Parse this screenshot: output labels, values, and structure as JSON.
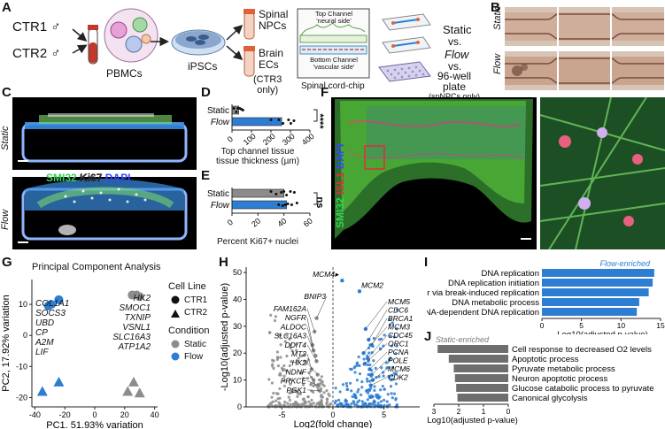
{
  "panels": {
    "A": {
      "letter": "A",
      "ctr1": "CTR1 ♂",
      "ctr2": "CTR2 ♂",
      "pbmcs": "PBMCs",
      "ipscs": "iPSCs",
      "spinal_npcs": [
        "Spinal",
        "NPCs"
      ],
      "brain_ecs": [
        "Brain",
        "ECs"
      ],
      "ctr3_only": [
        "CTR3",
        "only"
      ],
      "top_channel": [
        "Top Channel",
        "'neural side'"
      ],
      "bottom_channel": [
        "Bottom Channel",
        "'vascular side'"
      ],
      "chip_label": "Spinal cord-chip",
      "static": "Static",
      "vs1": "vs.",
      "flow": "Flow",
      "vs2": "vs.",
      "well_plate": [
        "96-well",
        "plate"
      ],
      "spnpcs_only": "(spNPCs only)"
    },
    "B": {
      "letter": "B",
      "static": "Static",
      "flow": "Flow"
    },
    "C": {
      "letter": "C",
      "static": "Static",
      "flow": "Flow",
      "smi32": "SMI32",
      "ki67": "Ki67",
      "dapi": "DAPI"
    },
    "D": {
      "letter": "D",
      "xlabel": [
        "Top channel tissue",
        "tissue thickness (µm)"
      ],
      "significance": "****"
    },
    "E": {
      "letter": "E",
      "xlabel": "Percent Ki67+ nuclei",
      "significance": "ns"
    },
    "F": {
      "letter": "F",
      "smi32": "SMI32",
      "isl1": "ISL1",
      "dapi": "DAPI"
    },
    "G": {
      "letter": "G",
      "title": "Principal Component Analysis",
      "cell_line_title": "Cell Line",
      "cell_lines": [
        "CTR1",
        "CTR2"
      ],
      "condition_title": "Condition",
      "conditions": [
        "Static",
        "Flow"
      ],
      "flow_genes": [
        "COL1A1",
        "SOCS3",
        "UBD",
        "CP",
        "A2M",
        "LIF"
      ],
      "static_genes": [
        "HK2",
        "SMOC1",
        "TXNIP",
        "VSNL1",
        "SLC16A3",
        "ATP1A2"
      ]
    },
    "H": {
      "letter": "H",
      "up_genes": [
        "MCM4",
        "MCM2",
        "MCM5",
        "CDC6",
        "BRCA1",
        "MCM3",
        "CDC45",
        "ORC1",
        "PCNA",
        "POLE",
        "MCM6",
        "CDK2"
      ],
      "down_genes": [
        "BNIP3",
        "FAM162A",
        "NGFR",
        "ALDOC",
        "SLC16A3",
        "DDIT4",
        "MT3",
        "HK2",
        "NDNF",
        "PRKCE",
        "PGK1"
      ]
    },
    "I": {
      "letter": "I",
      "subtitle": "Flow-enriched"
    },
    "J": {
      "letter": "J",
      "subtitle": "Static-enriched"
    }
  },
  "colors": {
    "flow": "#2d7dd2",
    "static": "#8c8c8c",
    "smi32": "#39d353",
    "isl1": "#e8283a",
    "dapi": "#3346ff"
  },
  "chart_data": [
    {
      "id": "D",
      "type": "bar",
      "orientation": "horizontal",
      "categories": [
        "Static",
        "Flow"
      ],
      "values": [
        35,
        255
      ],
      "points": {
        "Static": [
          10,
          22,
          30,
          40,
          48,
          56
        ],
        "Flow": [
          200,
          240,
          262,
          290,
          302,
          318
        ]
      },
      "title": "",
      "xlabel": "Top channel tissue tissue thickness (µm)",
      "ylabel": "",
      "xlim": [
        0,
        400
      ],
      "xticks": [
        "0",
        "100",
        "200",
        "300",
        "400"
      ]
    },
    {
      "id": "E",
      "type": "bar",
      "orientation": "horizontal",
      "categories": [
        "Static",
        "Flow"
      ],
      "values": [
        40,
        42
      ],
      "points": {
        "Static": [
          30,
          34,
          38,
          40,
          42,
          45,
          48
        ],
        "Flow": [
          36,
          39,
          41,
          43,
          46,
          50
        ]
      },
      "title": "",
      "xlabel": "Percent Ki67+ nuclei",
      "ylabel": "",
      "xlim": [
        0,
        60
      ],
      "xticks": [
        "0",
        "20",
        "40",
        "60"
      ]
    },
    {
      "id": "G",
      "type": "scatter",
      "title": "Principal Component Analysis",
      "xlabel": "PC1, 51.93% variation",
      "ylabel": "PC2, 17.92% variation",
      "xlim": [
        -42,
        42
      ],
      "ylim": [
        -23,
        18
      ],
      "xticks": [
        "-40",
        "-20",
        "0",
        "20",
        "40"
      ],
      "yticks": [
        "-20",
        "-10",
        "0",
        "10"
      ],
      "points": [
        {
          "x": -31,
          "y": 9.5,
          "line": "CTR1",
          "condition": "Flow"
        },
        {
          "x": -29,
          "y": 10,
          "line": "CTR1",
          "condition": "Flow"
        },
        {
          "x": -24,
          "y": 11.5,
          "line": "CTR1",
          "condition": "Flow"
        },
        {
          "x": -35,
          "y": -18,
          "line": "CTR2",
          "condition": "Flow"
        },
        {
          "x": -24,
          "y": -15,
          "line": "CTR2",
          "condition": "Flow"
        },
        {
          "x": 25,
          "y": 13,
          "line": "CTR1",
          "condition": "Static"
        },
        {
          "x": 28,
          "y": 13,
          "line": "CTR1",
          "condition": "Static"
        },
        {
          "x": 30,
          "y": 12.5,
          "line": "CTR1",
          "condition": "Static"
        },
        {
          "x": 26,
          "y": -15,
          "line": "CTR2",
          "condition": "Static"
        },
        {
          "x": 22,
          "y": -18,
          "line": "CTR2",
          "condition": "Static"
        },
        {
          "x": 30,
          "y": -18.5,
          "line": "CTR2",
          "condition": "Static"
        }
      ]
    },
    {
      "id": "H",
      "type": "scatter",
      "subtype": "volcano",
      "xlabel": "Log2(fold change)",
      "ylabel": "-Log10(adjusted p-value)",
      "xlim": [
        -8.5,
        8.5
      ],
      "ylim": [
        0,
        52
      ],
      "xticks": [
        "-5",
        "0",
        "5"
      ],
      "yticks": [
        "0",
        "10",
        "20",
        "30",
        "40",
        "50"
      ],
      "labeled_points": [
        {
          "gene": "MCM4",
          "x": 0.9,
          "y": 47
        },
        {
          "gene": "MCM2",
          "x": 2.6,
          "y": 43
        },
        {
          "gene": "MCM5",
          "x": 3.2,
          "y": 29
        },
        {
          "gene": "CDC6",
          "x": 3.5,
          "y": 25
        },
        {
          "gene": "BRCA1",
          "x": 3.8,
          "y": 23
        },
        {
          "gene": "MCM3",
          "x": 3.0,
          "y": 20
        },
        {
          "gene": "CDC45",
          "x": 3.4,
          "y": 18
        },
        {
          "gene": "ORC1",
          "x": 3.1,
          "y": 16
        },
        {
          "gene": "PCNA",
          "x": 3.6,
          "y": 14
        },
        {
          "gene": "POLE",
          "x": 3.8,
          "y": 12
        },
        {
          "gene": "MCM6",
          "x": 3.9,
          "y": 10
        },
        {
          "gene": "CDK2",
          "x": 3.7,
          "y": 8
        },
        {
          "gene": "BNIP3",
          "x": -1.6,
          "y": 33
        },
        {
          "gene": "FAM162A",
          "x": -1.8,
          "y": 28
        },
        {
          "gene": "NGFR",
          "x": -2.0,
          "y": 23
        },
        {
          "gene": "ALDOC",
          "x": -1.9,
          "y": 21
        },
        {
          "gene": "SLC16A3",
          "x": -1.7,
          "y": 19
        },
        {
          "gene": "DDIT4",
          "x": -1.6,
          "y": 17
        },
        {
          "gene": "MT3",
          "x": -2.1,
          "y": 14
        },
        {
          "gene": "HK2",
          "x": -1.5,
          "y": 12
        },
        {
          "gene": "NDNF",
          "x": -1.9,
          "y": 10
        },
        {
          "gene": "PRKCE",
          "x": -1.4,
          "y": 8
        },
        {
          "gene": "PGK1",
          "x": -1.3,
          "y": 6
        }
      ]
    },
    {
      "id": "I",
      "type": "bar",
      "orientation": "horizontal",
      "title": "Flow-enriched",
      "xlabel": "-Log10(adjusted p-value)",
      "categories": [
        "DNA replication",
        "DNA replication initiation",
        "DSB repair via break-induced replication",
        "DNA metabolic process",
        "DNA-dependent DNA replication"
      ],
      "values": [
        14.2,
        14.0,
        13.5,
        12.3,
        12.0
      ],
      "xlim": [
        0,
        15
      ],
      "xticks": [
        "0",
        "5",
        "10",
        "15"
      ]
    },
    {
      "id": "J",
      "type": "bar",
      "orientation": "horizontal",
      "title": "Static-enriched",
      "xlabel": "-Log10(adjusted p-value)",
      "categories": [
        "Cell response to decreased O2 levels",
        "Apoptotic process",
        "Pyruvate metabolic process",
        "Neuron apoptotic process",
        "Glucose catabolic process to pyruvate",
        "Canonical glycolysis"
      ],
      "values": [
        2.85,
        2.4,
        2.2,
        2.15,
        2.1,
        2.05
      ],
      "xlim": [
        0,
        3
      ],
      "xticks": [
        "3",
        "2",
        "1",
        "0"
      ]
    }
  ]
}
